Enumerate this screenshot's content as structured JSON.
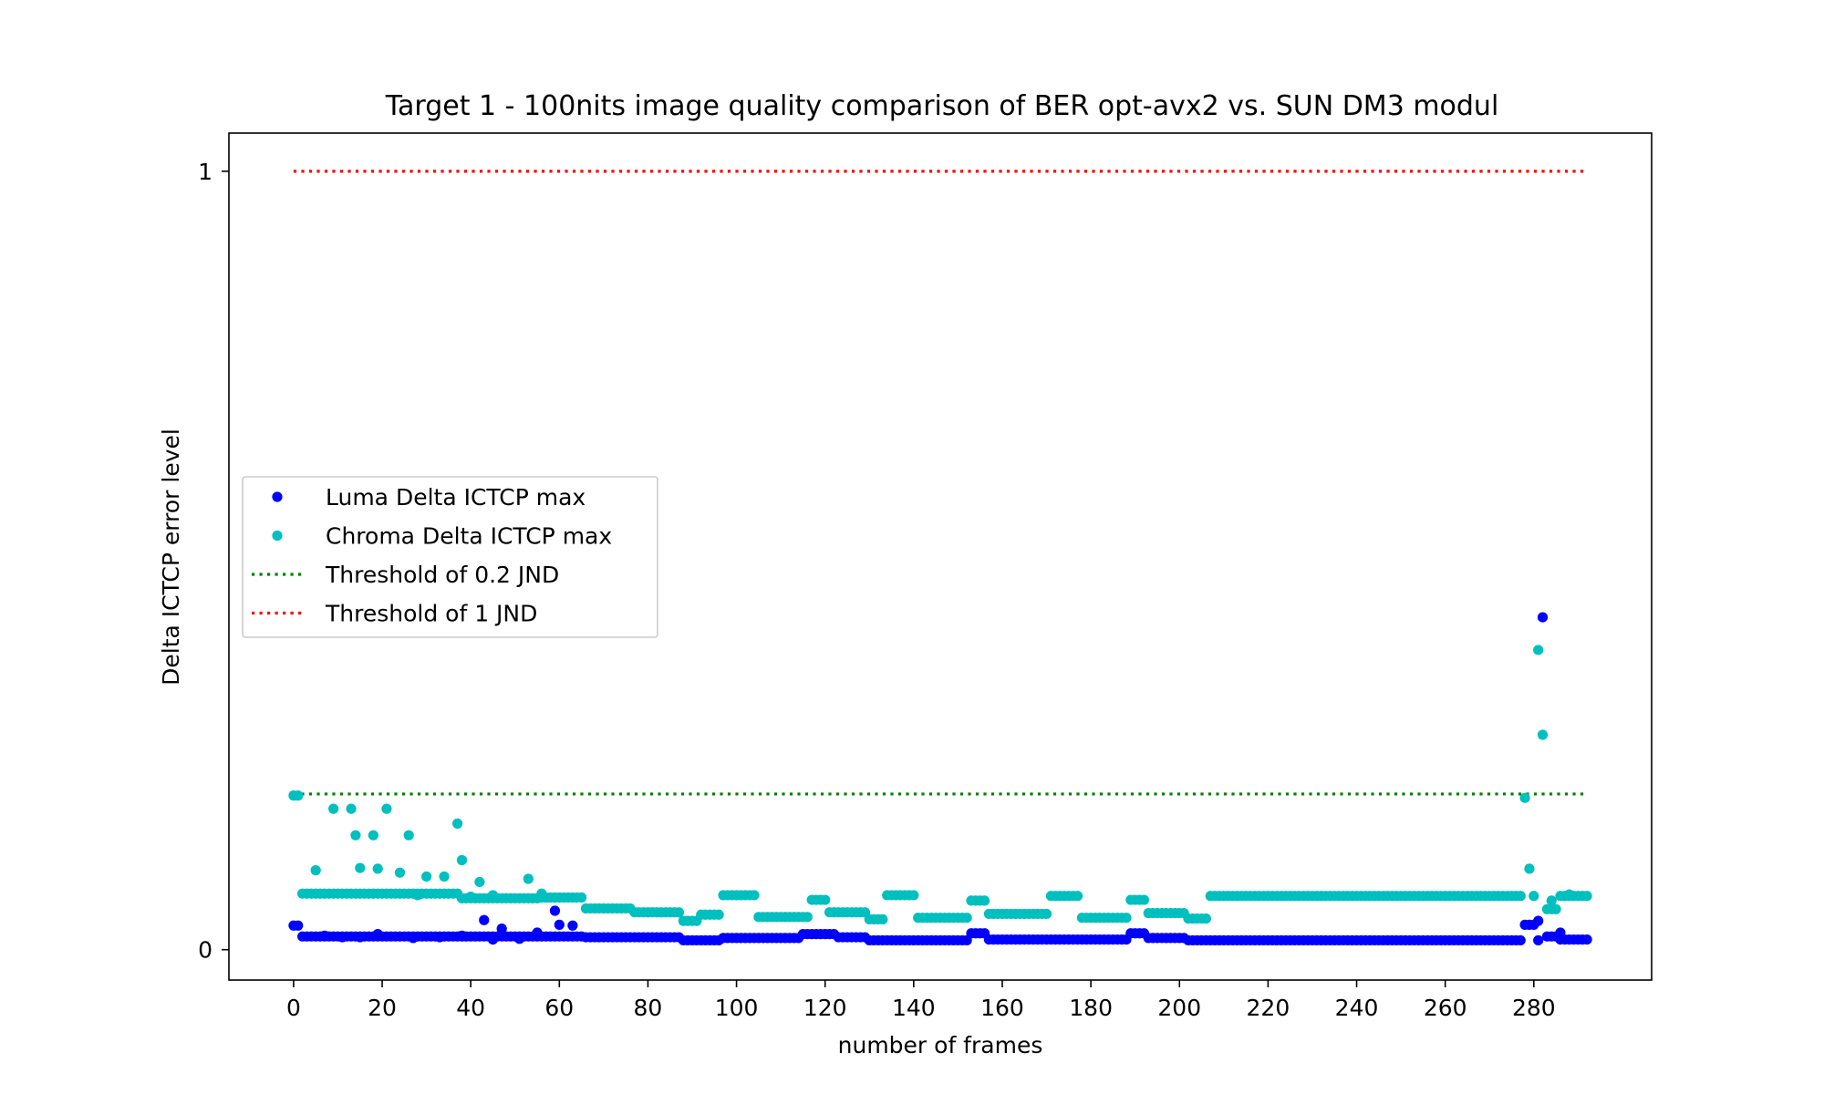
{
  "chart_data": {
    "type": "scatter",
    "title": "Target 1 - 100nits image quality comparison of BER opt-avx2 vs. SUN DM3 modul",
    "xlabel": "number of frames",
    "ylabel": "Delta ICTCP error level",
    "xlim": [
      -14.6,
      306.6
    ],
    "ylim": [
      -0.039,
      1.049
    ],
    "xticks": [
      0,
      20,
      40,
      60,
      80,
      100,
      120,
      140,
      160,
      180,
      200,
      220,
      240,
      260,
      280
    ],
    "yticks": [
      0,
      1
    ],
    "grid": false,
    "legend_position": "center-left",
    "series": [
      {
        "name": "Luma Delta ICTCP max",
        "kind": "points",
        "color": "#0000ff",
        "segments": [
          {
            "x_start": 0,
            "x_end": 1,
            "value": 0.031
          },
          {
            "x_start": 2,
            "x_end": 65,
            "value": 0.017
          },
          {
            "x_start": 66,
            "x_end": 87,
            "value": 0.016
          },
          {
            "x_start": 88,
            "x_end": 96,
            "value": 0.012
          },
          {
            "x_start": 97,
            "x_end": 114,
            "value": 0.015
          },
          {
            "x_start": 115,
            "x_end": 122,
            "value": 0.02
          },
          {
            "x_start": 123,
            "x_end": 129,
            "value": 0.016
          },
          {
            "x_start": 130,
            "x_end": 152,
            "value": 0.012
          },
          {
            "x_start": 153,
            "x_end": 156,
            "value": 0.021
          },
          {
            "x_start": 157,
            "x_end": 188,
            "value": 0.013
          },
          {
            "x_start": 189,
            "x_end": 192,
            "value": 0.021
          },
          {
            "x_start": 193,
            "x_end": 201,
            "value": 0.015
          },
          {
            "x_start": 202,
            "x_end": 277,
            "value": 0.012
          },
          {
            "x_start": 278,
            "x_end": 280,
            "value": 0.032
          },
          {
            "x_start": 281,
            "x_end": 281,
            "value": 0.037
          },
          {
            "x_start": 282,
            "x_end": 282,
            "value": 0.427
          },
          {
            "x_start": 283,
            "x_end": 285,
            "value": 0.017
          },
          {
            "x_start": 286,
            "x_end": 292,
            "value": 0.013
          }
        ],
        "extra_points": [
          [
            7,
            0.018
          ],
          [
            11,
            0.016
          ],
          [
            15,
            0.016
          ],
          [
            19,
            0.02
          ],
          [
            27,
            0.015
          ],
          [
            33,
            0.016
          ],
          [
            38,
            0.018
          ],
          [
            43,
            0.038
          ],
          [
            45,
            0.013
          ],
          [
            47,
            0.027
          ],
          [
            51,
            0.014
          ],
          [
            55,
            0.022
          ],
          [
            59,
            0.05
          ],
          [
            60,
            0.032
          ],
          [
            63,
            0.031
          ],
          [
            281,
            0.012
          ],
          [
            286,
            0.022
          ]
        ]
      },
      {
        "name": "Chroma Delta ICTCP max",
        "kind": "points",
        "color": "#00bfbf",
        "segments": [
          {
            "x_start": 0,
            "x_end": 1,
            "value": 0.198
          },
          {
            "x_start": 2,
            "x_end": 9,
            "value": 0.072
          },
          {
            "x_start": 10,
            "x_end": 37,
            "value": 0.072
          },
          {
            "x_start": 38,
            "x_end": 55,
            "value": 0.066
          },
          {
            "x_start": 56,
            "x_end": 65,
            "value": 0.067
          },
          {
            "x_start": 66,
            "x_end": 76,
            "value": 0.053
          },
          {
            "x_start": 77,
            "x_end": 87,
            "value": 0.048
          },
          {
            "x_start": 88,
            "x_end": 91,
            "value": 0.037
          },
          {
            "x_start": 92,
            "x_end": 96,
            "value": 0.045
          },
          {
            "x_start": 97,
            "x_end": 104,
            "value": 0.07
          },
          {
            "x_start": 105,
            "x_end": 116,
            "value": 0.042
          },
          {
            "x_start": 117,
            "x_end": 120,
            "value": 0.064
          },
          {
            "x_start": 121,
            "x_end": 129,
            "value": 0.048
          },
          {
            "x_start": 130,
            "x_end": 133,
            "value": 0.039
          },
          {
            "x_start": 134,
            "x_end": 140,
            "value": 0.07
          },
          {
            "x_start": 141,
            "x_end": 152,
            "value": 0.041
          },
          {
            "x_start": 153,
            "x_end": 156,
            "value": 0.063
          },
          {
            "x_start": 157,
            "x_end": 170,
            "value": 0.046
          },
          {
            "x_start": 171,
            "x_end": 177,
            "value": 0.069
          },
          {
            "x_start": 178,
            "x_end": 188,
            "value": 0.041
          },
          {
            "x_start": 189,
            "x_end": 192,
            "value": 0.064
          },
          {
            "x_start": 193,
            "x_end": 201,
            "value": 0.047
          },
          {
            "x_start": 202,
            "x_end": 206,
            "value": 0.04
          },
          {
            "x_start": 207,
            "x_end": 277,
            "value": 0.069
          },
          {
            "x_start": 280,
            "x_end": 280,
            "value": 0.069
          },
          {
            "x_start": 283,
            "x_end": 285,
            "value": 0.052
          },
          {
            "x_start": 286,
            "x_end": 292,
            "value": 0.069
          }
        ],
        "extra_points": [
          [
            5,
            0.102
          ],
          [
            9,
            0.181
          ],
          [
            13,
            0.181
          ],
          [
            14,
            0.147
          ],
          [
            15,
            0.105
          ],
          [
            18,
            0.147
          ],
          [
            19,
            0.104
          ],
          [
            21,
            0.181
          ],
          [
            24,
            0.099
          ],
          [
            26,
            0.147
          ],
          [
            28,
            0.07
          ],
          [
            30,
            0.094
          ],
          [
            34,
            0.094
          ],
          [
            37,
            0.162
          ],
          [
            38,
            0.115
          ],
          [
            40,
            0.068
          ],
          [
            42,
            0.087
          ],
          [
            45,
            0.07
          ],
          [
            53,
            0.091
          ],
          [
            56,
            0.072
          ],
          [
            278,
            0.195
          ],
          [
            279,
            0.104
          ],
          [
            281,
            0.385
          ],
          [
            282,
            0.276
          ],
          [
            284,
            0.063
          ],
          [
            288,
            0.071
          ]
        ]
      },
      {
        "name": "Threshold of 0.2 JND",
        "kind": "line",
        "color": "#008000",
        "x_range": [
          0,
          292
        ],
        "value": 0.2
      },
      {
        "name": "Threshold of 1 JND",
        "kind": "line",
        "color": "#ff0000",
        "x_range": [
          0,
          292
        ],
        "value": 1.0
      }
    ]
  }
}
